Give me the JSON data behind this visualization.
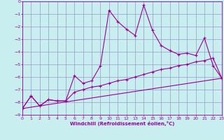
{
  "xlabel": "Windchill (Refroidissement éolien,°C)",
  "background_color": "#c8eef0",
  "grid_color": "#9999cc",
  "line_color": "#990099",
  "xlim": [
    0,
    23
  ],
  "ylim": [
    -9,
    0
  ],
  "xticks": [
    0,
    1,
    2,
    3,
    4,
    5,
    6,
    7,
    8,
    9,
    10,
    11,
    12,
    13,
    14,
    15,
    16,
    17,
    18,
    19,
    20,
    21,
    22,
    23
  ],
  "yticks": [
    0,
    -1,
    -2,
    -3,
    -4,
    -5,
    -6,
    -7,
    -8,
    -9
  ],
  "curve1_x": [
    0,
    1,
    2,
    3,
    4,
    5,
    6,
    7,
    8,
    9,
    10,
    11,
    12,
    13,
    14,
    15,
    16,
    17,
    18,
    19,
    20,
    21,
    22,
    23
  ],
  "curve1_y": [
    -8.5,
    -7.5,
    -8.3,
    -7.8,
    -7.9,
    -7.9,
    -5.9,
    -6.5,
    -6.3,
    -5.1,
    -0.7,
    -1.6,
    -2.2,
    -2.7,
    -0.3,
    -2.3,
    -3.5,
    -3.9,
    -4.2,
    -4.1,
    -4.3,
    -2.9,
    -5.1,
    -6.1
  ],
  "curve2_x": [
    0,
    1,
    2,
    3,
    4,
    5,
    6,
    7,
    8,
    9,
    10,
    11,
    12,
    13,
    14,
    15,
    16,
    17,
    18,
    19,
    20,
    21,
    22,
    23
  ],
  "curve2_y": [
    -8.5,
    -7.5,
    -8.3,
    -7.8,
    -7.9,
    -7.9,
    -7.2,
    -7.0,
    -6.8,
    -6.7,
    -6.5,
    -6.3,
    -6.2,
    -6.0,
    -5.8,
    -5.6,
    -5.4,
    -5.3,
    -5.1,
    -5.0,
    -4.8,
    -4.7,
    -4.5,
    -6.1
  ],
  "line_x": [
    0,
    23
  ],
  "line_y": [
    -8.5,
    -6.1
  ]
}
